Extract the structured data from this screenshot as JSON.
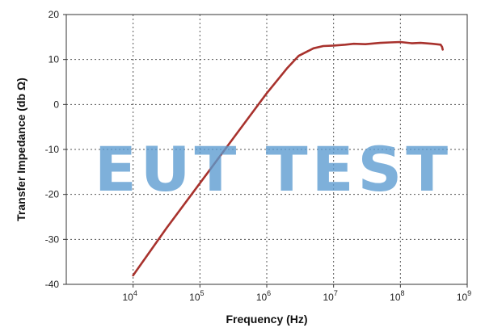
{
  "chart_data": {
    "type": "line",
    "title": "",
    "xlabel": "Frequency (Hz)",
    "ylabel": "Transfer Impedance (db Ω)",
    "x_scale": "log",
    "xlim": [
      1000,
      1000000000
    ],
    "ylim": [
      -40,
      20
    ],
    "grid": true,
    "legend": "none",
    "x_ticks": [
      {
        "value": 10000,
        "base": "10",
        "exp": "4"
      },
      {
        "value": 100000,
        "base": "10",
        "exp": "5"
      },
      {
        "value": 1000000,
        "base": "10",
        "exp": "6"
      },
      {
        "value": 10000000,
        "base": "10",
        "exp": "7"
      },
      {
        "value": 100000000,
        "base": "10",
        "exp": "8"
      },
      {
        "value": 1000000000,
        "base": "10",
        "exp": "9"
      }
    ],
    "y_ticks": [
      20,
      10,
      0,
      -10,
      -20,
      -30,
      -40
    ],
    "series": [
      {
        "color": "#a8322d",
        "x": [
          10000,
          31600,
          100000,
          316000,
          1000000,
          2000000,
          3000000,
          5000000,
          7000000,
          10000000,
          15000000,
          20000000,
          30000000,
          50000000,
          70000000,
          100000000,
          150000000,
          200000000,
          300000000,
          400000000,
          420000000,
          430000000
        ],
        "values": [
          -38,
          -27.5,
          -17.5,
          -7.5,
          2.5,
          8.0,
          10.8,
          12.5,
          13.0,
          13.1,
          13.3,
          13.5,
          13.4,
          13.7,
          13.8,
          13.9,
          13.6,
          13.7,
          13.5,
          13.3,
          12.8,
          12.2
        ]
      }
    ]
  },
  "watermark": "EUT TEST",
  "colors": {
    "grid": "#555555",
    "line": "#a8322d",
    "watermark": "#5b9bd0"
  }
}
